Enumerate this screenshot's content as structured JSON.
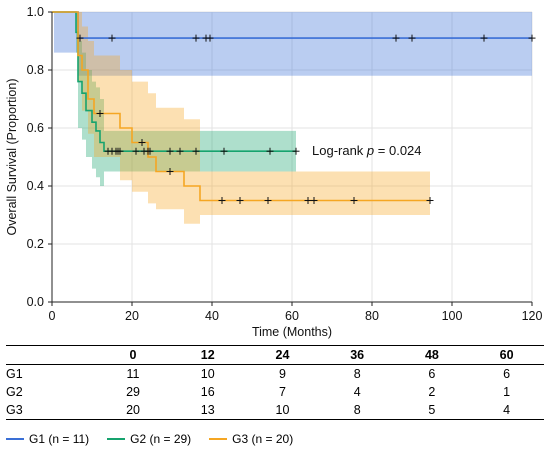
{
  "colors": {
    "G1": "#3a6fd6",
    "G2": "#16a36e",
    "G3": "#f5a623"
  },
  "chart_data": {
    "type": "line",
    "subtype": "kaplan-meier",
    "xlabel": "Time (Months)",
    "ylabel": "Overall Survival (Proportion)",
    "xlim": [
      0,
      120
    ],
    "ylim": [
      0.0,
      1.0
    ],
    "xticks": [
      0,
      20,
      40,
      60,
      80,
      100,
      120
    ],
    "yticks": [
      0.0,
      0.2,
      0.4,
      0.6,
      0.8,
      1.0
    ],
    "ytick_labels": [
      "0.0",
      "0.2",
      "0.4",
      "0.6",
      "0.8",
      "1.0"
    ],
    "grid": true,
    "annotation": {
      "prefix": "Log-rank ",
      "p": "p",
      "suffix": " = 0.024",
      "x": 65,
      "y": 0.52
    },
    "series": [
      {
        "name": "G1 (n = 11)",
        "color": "#3a6fd6",
        "steps": [
          [
            0,
            1.0
          ],
          [
            6.5,
            0.91
          ],
          [
            120,
            0.91
          ]
        ],
        "ci_steps": [
          [
            0,
            1.0,
            1.0
          ],
          [
            0.5,
            1.0,
            0.86
          ],
          [
            6.5,
            1.0,
            0.78
          ],
          [
            120,
            1.0,
            0.78
          ]
        ],
        "censor": [
          7,
          15,
          36,
          38.5,
          39.5,
          86,
          90,
          108,
          120
        ]
      },
      {
        "name": "G2 (n = 29)",
        "color": "#16a36e",
        "steps": [
          [
            0,
            1.0
          ],
          [
            6,
            0.93
          ],
          [
            6.5,
            0.76
          ],
          [
            7.5,
            0.72
          ],
          [
            8.5,
            0.66
          ],
          [
            10,
            0.62
          ],
          [
            11,
            0.59
          ],
          [
            12,
            0.55
          ],
          [
            13,
            0.52
          ],
          [
            61,
            0.52
          ]
        ],
        "ci_steps": [
          [
            0,
            1.0,
            1.0
          ],
          [
            6,
            1.0,
            0.86
          ],
          [
            6.5,
            0.9,
            0.6
          ],
          [
            7.5,
            0.86,
            0.56
          ],
          [
            8.5,
            0.8,
            0.5
          ],
          [
            10,
            0.76,
            0.46
          ],
          [
            11,
            0.74,
            0.43
          ],
          [
            12,
            0.7,
            0.4
          ],
          [
            13,
            0.59,
            0.45
          ],
          [
            61,
            0.59,
            0.45
          ]
        ],
        "censor": [
          14,
          15,
          16,
          16.5,
          17,
          21,
          23,
          24,
          24.5,
          29.5,
          32,
          36,
          43,
          54.5,
          61
        ]
      },
      {
        "name": "G3 (n = 20)",
        "color": "#f5a623",
        "steps": [
          [
            0,
            1.0
          ],
          [
            6.5,
            0.85
          ],
          [
            7.5,
            0.8
          ],
          [
            9,
            0.7
          ],
          [
            10.5,
            0.65
          ],
          [
            17,
            0.6
          ],
          [
            20,
            0.55
          ],
          [
            24,
            0.5
          ],
          [
            26,
            0.45
          ],
          [
            33,
            0.4
          ],
          [
            37,
            0.35
          ],
          [
            94.5,
            0.35
          ]
        ],
        "ci_steps": [
          [
            0,
            1.0,
            1.0
          ],
          [
            6.5,
            1.0,
            0.76
          ],
          [
            7.5,
            0.95,
            0.66
          ],
          [
            9,
            0.9,
            0.58
          ],
          [
            10.5,
            0.85,
            0.5
          ],
          [
            17,
            0.8,
            0.42
          ],
          [
            20,
            0.76,
            0.38
          ],
          [
            24,
            0.72,
            0.34
          ],
          [
            26,
            0.67,
            0.32
          ],
          [
            33,
            0.63,
            0.27
          ],
          [
            37,
            0.45,
            0.3
          ],
          [
            94.5,
            0.45,
            0.3
          ]
        ],
        "censor": [
          12,
          22.5,
          29.5,
          42.5,
          47,
          54,
          64,
          65.5,
          75.5,
          94.5
        ]
      }
    ],
    "risk_table": {
      "header": [
        "",
        "0",
        "12",
        "24",
        "36",
        "48",
        "60"
      ],
      "rows": [
        {
          "label": "G1",
          "values": [
            "11",
            "10",
            "9",
            "8",
            "6",
            "6"
          ]
        },
        {
          "label": "G2",
          "values": [
            "29",
            "16",
            "7",
            "4",
            "2",
            "1"
          ]
        },
        {
          "label": "G3",
          "values": [
            "20",
            "13",
            "10",
            "8",
            "5",
            "4"
          ]
        }
      ]
    }
  }
}
